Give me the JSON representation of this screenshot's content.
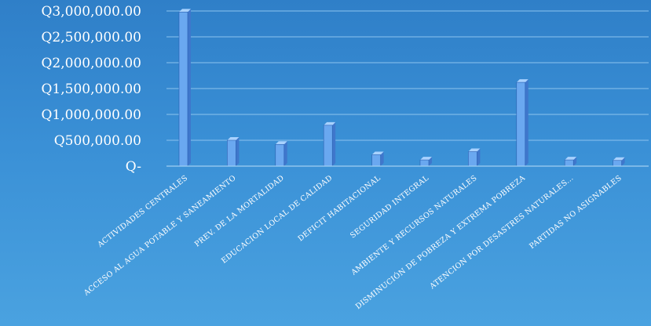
{
  "chart_data": {
    "type": "bar",
    "title": "",
    "xlabel": "",
    "ylabel": "",
    "ylim": [
      0,
      3000000
    ],
    "yticks": [
      0,
      500000,
      1000000,
      1500000,
      2000000,
      2500000,
      3000000
    ],
    "ytick_labels": [
      "Q-",
      "Q500,000.00",
      "Q1,000,000.00",
      "Q1,500,000.00",
      "Q2,000,000.00",
      "Q2,500,000.00",
      "Q3,000,000.00"
    ],
    "categories": [
      "ACTIVIDADES CENTRALES",
      "ACCESO AL AGUA POTABLE Y SANEAMIENTO",
      "PREV. DE LA MORTALIDAD",
      "EDUCACION LOCAL DE CALIDAD",
      "DEFICIT HABITACIONAL",
      "SEGURIDAD INTEGRAL",
      "AMBIENTE Y RECURSOS NATURALES",
      "DISMINUCIÓN DE POBREZA Y EXTREMA POBREZA",
      "ATENCION POR DESASTRES NATURALES...",
      "PARTIDAS NO ASIGNABLES"
    ],
    "values": [
      2980000,
      500000,
      420000,
      790000,
      220000,
      120000,
      280000,
      1620000,
      120000,
      110000
    ],
    "grid": true,
    "legend": "none",
    "colors": {
      "bar_front": "#6aa8f0",
      "bar_side": "#3f77cc",
      "bar_top": "#a9d2ff"
    }
  }
}
